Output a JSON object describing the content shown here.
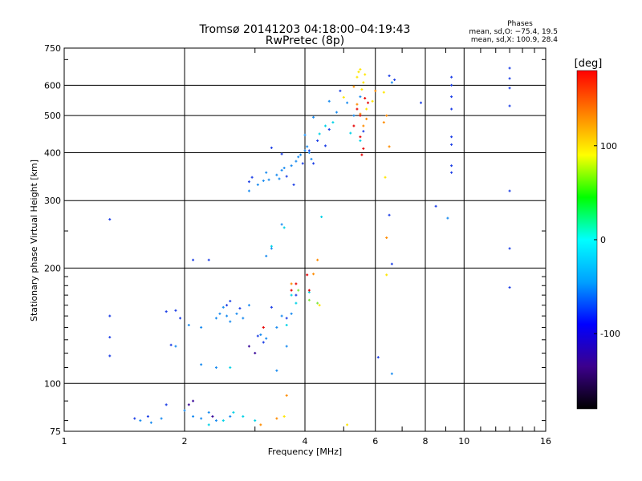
{
  "chart_data": {
    "type": "scatter",
    "title": "Tromsø 20141203 04:18:00–04:19:43",
    "subtitle": "RwPretec (8p)",
    "xlabel": "Frequency [MHz]",
    "ylabel": "Stationary phase Virtual Height [km]",
    "x_scale": "log",
    "y_scale": "log",
    "xlim": [
      1,
      16
    ],
    "ylim": [
      75,
      750
    ],
    "x_ticks": [
      1,
      2,
      4,
      6,
      8,
      10,
      16
    ],
    "y_ticks": [
      75,
      100,
      200,
      300,
      400,
      500,
      600,
      750
    ],
    "grid": true,
    "phase_stats": {
      "title": "Phases",
      "line_o": "mean, sd,O: −75.4, 19.5",
      "line_x": "mean, sd,X: 100.9, 28.4"
    },
    "colorbar": {
      "label": "[deg]",
      "range": [
        -180,
        180
      ],
      "ticks": [
        -100,
        0,
        100
      ],
      "colormap": [
        "#000000",
        "#3c008c",
        "#0000ff",
        "#00a0ff",
        "#00ffff",
        "#00ff00",
        "#ffff00",
        "#ff8000",
        "#ff0000"
      ]
    },
    "series": [
      {
        "color": "#1e40e6",
        "points": [
          [
            1.3,
            268
          ],
          [
            1.3,
            150
          ],
          [
            1.3,
            132
          ],
          [
            1.3,
            118
          ],
          [
            1.5,
            81
          ],
          [
            1.62,
            82
          ],
          [
            1.8,
            88
          ],
          [
            1.85,
            126
          ],
          [
            1.8,
            154
          ],
          [
            1.9,
            155
          ],
          [
            1.95,
            148
          ],
          [
            2.1,
            210
          ],
          [
            2.3,
            210
          ],
          [
            2.55,
            160
          ],
          [
            2.6,
            164
          ],
          [
            2.75,
            157
          ],
          [
            3.05,
            133
          ],
          [
            3.15,
            128
          ],
          [
            3.3,
            158
          ],
          [
            3.6,
            148
          ],
          [
            3.8,
            170
          ],
          [
            6.1,
            117
          ],
          [
            6.5,
            275
          ],
          [
            6.6,
            205
          ],
          [
            8.5,
            290
          ],
          [
            9.3,
            370
          ],
          [
            9.3,
            355
          ],
          [
            9.3,
            420
          ],
          [
            9.3,
            440
          ],
          [
            9.3,
            520
          ],
          [
            9.3,
            560
          ],
          [
            9.3,
            600
          ],
          [
            9.3,
            630
          ],
          [
            13,
            665
          ],
          [
            13,
            625
          ],
          [
            13,
            590
          ],
          [
            13,
            530
          ],
          [
            13,
            318
          ],
          [
            13,
            225
          ],
          [
            13,
            178
          ],
          [
            2.9,
            336
          ],
          [
            2.95,
            345
          ],
          [
            3.3,
            412
          ],
          [
            3.5,
            397
          ],
          [
            3.6,
            347
          ],
          [
            3.75,
            330
          ],
          [
            3.95,
            375
          ],
          [
            4.1,
            405
          ],
          [
            4.2,
            375
          ],
          [
            4.3,
            430
          ],
          [
            4.5,
            417
          ],
          [
            4.6,
            460
          ],
          [
            4.9,
            580
          ],
          [
            5.6,
            455
          ],
          [
            6.5,
            635
          ],
          [
            6.7,
            620
          ],
          [
            7.8,
            540
          ]
        ]
      },
      {
        "color": "#1a8cf0",
        "points": [
          [
            1.55,
            80
          ],
          [
            1.65,
            79
          ],
          [
            1.75,
            81
          ],
          [
            2.0,
            85
          ],
          [
            2.1,
            82
          ],
          [
            2.2,
            81
          ],
          [
            2.3,
            84
          ],
          [
            2.4,
            80
          ],
          [
            2.6,
            82
          ],
          [
            1.9,
            125
          ],
          [
            2.05,
            142
          ],
          [
            2.2,
            140
          ],
          [
            2.4,
            148
          ],
          [
            2.45,
            152
          ],
          [
            2.5,
            158
          ],
          [
            2.55,
            150
          ],
          [
            2.6,
            145
          ],
          [
            2.7,
            152
          ],
          [
            2.8,
            148
          ],
          [
            2.9,
            160
          ],
          [
            3.1,
            134
          ],
          [
            3.2,
            131
          ],
          [
            3.4,
            140
          ],
          [
            3.5,
            150
          ],
          [
            3.6,
            125
          ],
          [
            3.7,
            152
          ],
          [
            3.2,
            215
          ],
          [
            3.3,
            225
          ],
          [
            3.5,
            260
          ],
          [
            2.9,
            318
          ],
          [
            3.05,
            330
          ],
          [
            3.15,
            338
          ],
          [
            3.2,
            355
          ],
          [
            3.25,
            340
          ],
          [
            3.4,
            350
          ],
          [
            3.45,
            342
          ],
          [
            3.5,
            360
          ],
          [
            3.55,
            365
          ],
          [
            3.7,
            370
          ],
          [
            3.8,
            380
          ],
          [
            3.85,
            390
          ],
          [
            3.9,
            395
          ],
          [
            4.0,
            405
          ],
          [
            4.05,
            415
          ],
          [
            4.1,
            400
          ],
          [
            4.15,
            385
          ],
          [
            4.0,
            445
          ],
          [
            4.2,
            495
          ],
          [
            4.6,
            545
          ],
          [
            4.8,
            510
          ],
          [
            5.1,
            540
          ],
          [
            5.3,
            500
          ],
          [
            5.5,
            560
          ],
          [
            6.6,
            610
          ],
          [
            2.2,
            112
          ],
          [
            2.4,
            110
          ],
          [
            3.4,
            108
          ],
          [
            6.6,
            106
          ],
          [
            9.1,
            270
          ]
        ]
      },
      {
        "color": "#00d2e6",
        "points": [
          [
            2.3,
            78
          ],
          [
            2.5,
            80
          ],
          [
            2.65,
            84
          ],
          [
            2.8,
            82
          ],
          [
            3.0,
            80
          ],
          [
            3.6,
            142
          ],
          [
            3.7,
            170
          ],
          [
            3.8,
            162
          ],
          [
            4.1,
            173
          ],
          [
            4.4,
            272
          ],
          [
            4.35,
            448
          ],
          [
            4.5,
            470
          ],
          [
            4.7,
            480
          ],
          [
            5.2,
            450
          ],
          [
            5.5,
            430
          ],
          [
            2.6,
            110
          ],
          [
            3.3,
            228
          ],
          [
            3.55,
            255
          ]
        ]
      },
      {
        "color": "#80e640",
        "points": [
          [
            3.85,
            175
          ],
          [
            4.1,
            165
          ],
          [
            4.3,
            162
          ]
        ]
      },
      {
        "color": "#ffe600",
        "points": [
          [
            5.0,
            558
          ],
          [
            5.4,
            630
          ],
          [
            5.45,
            650
          ],
          [
            5.5,
            660
          ],
          [
            5.6,
            610
          ],
          [
            5.65,
            640
          ],
          [
            5.55,
            585
          ],
          [
            5.7,
            520
          ],
          [
            5.9,
            545
          ],
          [
            6.3,
            575
          ],
          [
            6.35,
            345
          ],
          [
            6.4,
            192
          ],
          [
            5.1,
            78
          ],
          [
            3.55,
            82
          ],
          [
            4.35,
            160
          ]
        ]
      },
      {
        "color": "#ff8c00",
        "points": [
          [
            3.1,
            78
          ],
          [
            3.4,
            81
          ],
          [
            3.6,
            93
          ],
          [
            4.2,
            193
          ],
          [
            4.3,
            210
          ],
          [
            5.3,
            595
          ],
          [
            5.4,
            535
          ],
          [
            5.5,
            505
          ],
          [
            5.6,
            470
          ],
          [
            5.7,
            490
          ],
          [
            6.0,
            580
          ],
          [
            6.3,
            480
          ],
          [
            6.4,
            500
          ],
          [
            6.5,
            415
          ],
          [
            3.7,
            182
          ],
          [
            6.4,
            240
          ]
        ]
      },
      {
        "color": "#e60000",
        "points": [
          [
            5.4,
            520
          ],
          [
            5.5,
            500
          ],
          [
            5.65,
            555
          ],
          [
            5.75,
            540
          ],
          [
            5.3,
            470
          ],
          [
            4.1,
            175
          ],
          [
            3.15,
            140
          ],
          [
            5.5,
            440
          ],
          [
            5.6,
            410
          ],
          [
            5.55,
            395
          ],
          [
            4.05,
            192
          ],
          [
            3.7,
            175
          ],
          [
            3.8,
            182
          ]
        ]
      },
      {
        "color": "#3a0a9a",
        "points": [
          [
            2.1,
            90
          ],
          [
            2.35,
            82
          ],
          [
            3.0,
            120
          ],
          [
            2.05,
            88
          ],
          [
            2.9,
            125
          ]
        ]
      }
    ]
  }
}
